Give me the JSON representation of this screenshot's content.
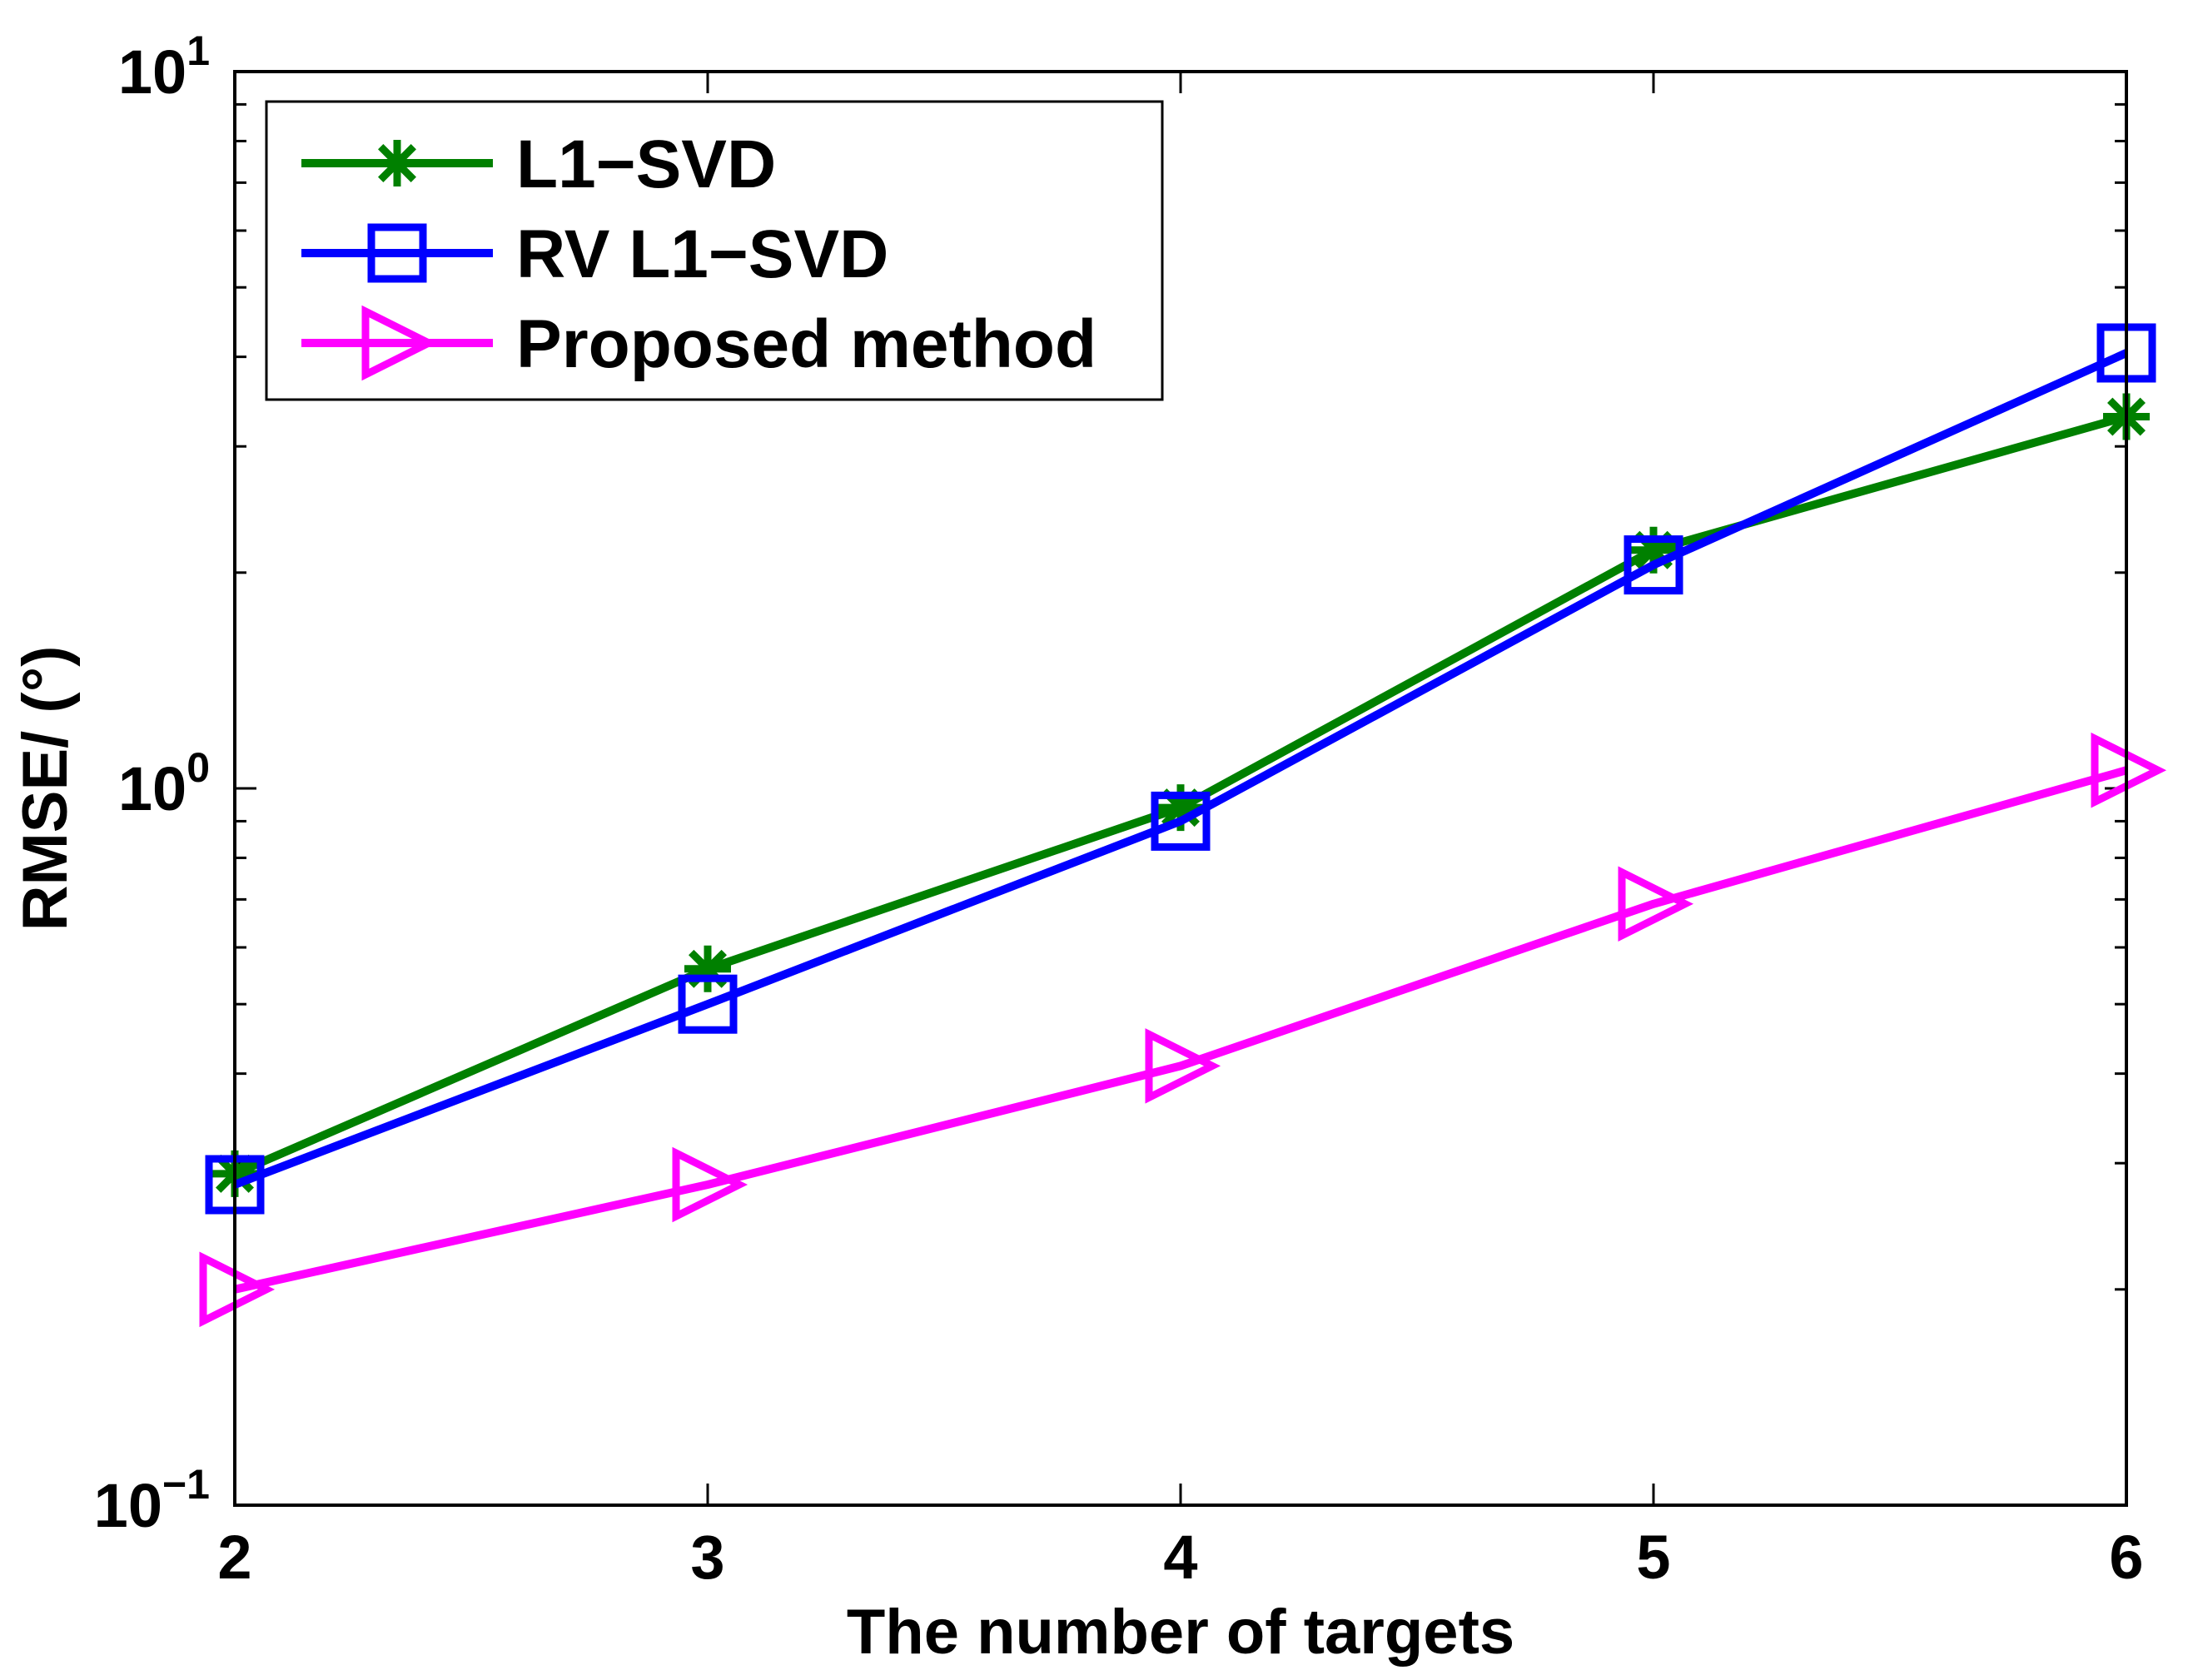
{
  "chart_data": {
    "type": "line",
    "title": "",
    "xlabel": "The number of  targets",
    "ylabel": "RMSE/ (°)",
    "yscale": "log",
    "x": [
      2,
      3,
      4,
      5,
      6
    ],
    "xlim": [
      2,
      6
    ],
    "ylim": [
      0.1,
      10
    ],
    "x_ticks": [
      "2",
      "3",
      "4",
      "5",
      "6"
    ],
    "y_ticks": [
      {
        "value": 0.1,
        "base": "10",
        "exp": "−1"
      },
      {
        "value": 1,
        "base": "10",
        "exp": "0"
      },
      {
        "value": 10,
        "base": "10",
        "exp": "1"
      }
    ],
    "grid": false,
    "legend_position": "top-left",
    "series": [
      {
        "name": "L1−SVD",
        "color": "#008000",
        "marker": "asterisk",
        "values": [
          0.29,
          0.56,
          0.94,
          2.15,
          3.3
        ]
      },
      {
        "name": "RV L1−SVD",
        "color": "#0000ff",
        "marker": "square",
        "values": [
          0.28,
          0.5,
          0.9,
          2.05,
          4.05
        ]
      },
      {
        "name": "Proposed method",
        "color": "#ff00ff",
        "marker": "triangle-right",
        "values": [
          0.2,
          0.28,
          0.41,
          0.69,
          1.06
        ]
      }
    ]
  }
}
